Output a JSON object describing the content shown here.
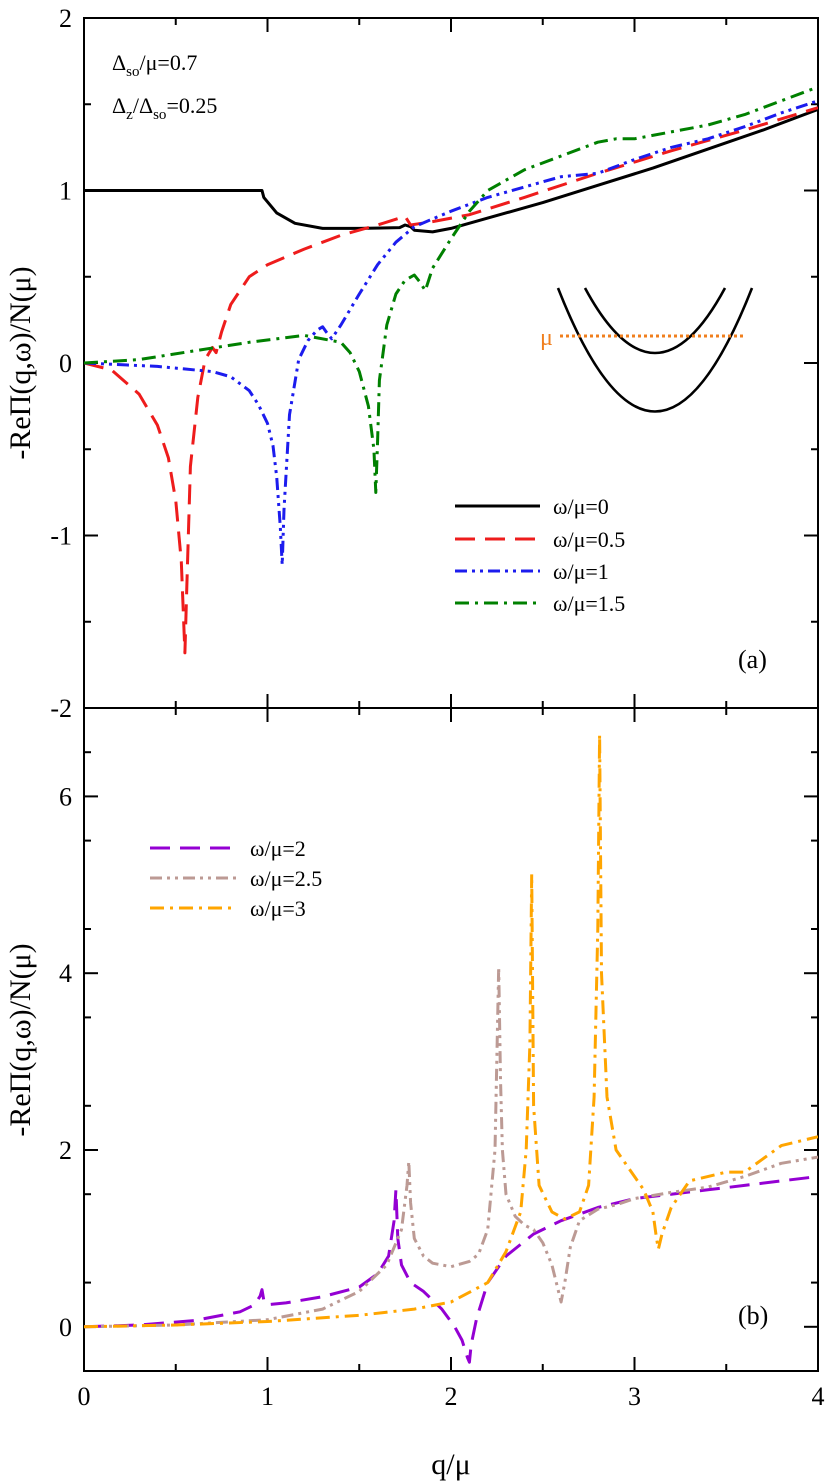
{
  "chart_data": [
    {
      "type": "line",
      "panel_label": "(a)",
      "xlabel": "",
      "ylabel": "-ReΠ(q,ω)/N(μ)",
      "xlim": [
        0,
        4
      ],
      "ylim": [
        -2,
        2
      ],
      "x_ticks": [],
      "y_ticks": [
        -2,
        -1,
        0,
        1,
        2
      ],
      "y_tick_labels": [
        "-2",
        "-1",
        "0",
        "1",
        "2"
      ],
      "annotations": [
        {
          "base": "Δ",
          "sub": "so",
          "rest": "/μ=0.7"
        },
        {
          "base": "Δ",
          "sub": "z",
          "mid": "/Δ",
          "sub2": "so",
          "rest": "=0.25"
        }
      ],
      "inset": {
        "mu_label": "μ",
        "mu_color": "#f07f1e",
        "description_level_rel": 0.55
      },
      "legend_position": "lower-right",
      "series": [
        {
          "name": "ω/μ=0",
          "color": "#000000",
          "dash": "solid",
          "x": [
            0,
            0.97,
            0.98,
            1.05,
            1.15,
            1.3,
            1.5,
            1.72,
            1.75,
            1.78,
            1.8,
            1.9,
            2.0,
            2.2,
            2.5,
            2.8,
            3.1,
            3.4,
            3.7,
            4.0
          ],
          "y": [
            1.0,
            1.0,
            0.96,
            0.87,
            0.81,
            0.78,
            0.78,
            0.785,
            0.8,
            0.79,
            0.77,
            0.76,
            0.78,
            0.84,
            0.93,
            1.03,
            1.13,
            1.24,
            1.35,
            1.47
          ]
        },
        {
          "name": "ω/μ=0.5",
          "color": "#ee1c1c",
          "dash": "long-dash",
          "x": [
            0,
            0.15,
            0.3,
            0.4,
            0.46,
            0.5,
            0.53,
            0.55,
            0.56,
            0.58,
            0.62,
            0.66,
            0.7,
            0.72,
            0.75,
            0.8,
            0.9,
            1.0,
            1.2,
            1.4,
            1.6,
            1.72,
            1.75,
            1.78,
            1.9,
            2.1,
            2.4,
            2.8,
            3.2,
            3.6,
            4.0
          ],
          "y": [
            0,
            -0.04,
            -0.18,
            -0.36,
            -0.55,
            -0.8,
            -1.15,
            -1.68,
            -1.3,
            -0.6,
            -0.2,
            0.02,
            0.09,
            0.06,
            0.18,
            0.34,
            0.5,
            0.57,
            0.66,
            0.74,
            0.8,
            0.84,
            0.85,
            0.8,
            0.82,
            0.86,
            0.96,
            1.1,
            1.23,
            1.35,
            1.48
          ]
        },
        {
          "name": "ω/μ=1",
          "color": "#1c1cee",
          "dash": "dash-dot-dot",
          "x": [
            0,
            0.4,
            0.7,
            0.8,
            0.9,
            0.95,
            1.0,
            1.03,
            1.05,
            1.07,
            1.08,
            1.09,
            1.12,
            1.17,
            1.22,
            1.27,
            1.3,
            1.32,
            1.35,
            1.4,
            1.5,
            1.6,
            1.7,
            1.8,
            2.0,
            2.2,
            2.4,
            2.6,
            2.8,
            3.0,
            3.2,
            3.4,
            3.6,
            3.8,
            4.0
          ],
          "y": [
            0,
            -0.02,
            -0.05,
            -0.08,
            -0.16,
            -0.24,
            -0.35,
            -0.48,
            -0.66,
            -0.95,
            -1.17,
            -0.85,
            -0.3,
            0.02,
            0.13,
            0.19,
            0.21,
            0.18,
            0.14,
            0.22,
            0.4,
            0.57,
            0.7,
            0.79,
            0.88,
            0.96,
            1.02,
            1.08,
            1.1,
            1.18,
            1.25,
            1.3,
            1.37,
            1.45,
            1.52
          ]
        },
        {
          "name": "ω/μ=1.5",
          "color": "#008000",
          "dash": "dash-dot",
          "x": [
            0,
            0.3,
            0.6,
            0.9,
            1.2,
            1.4,
            1.45,
            1.5,
            1.55,
            1.58,
            1.59,
            1.6,
            1.61,
            1.65,
            1.7,
            1.75,
            1.8,
            1.83,
            1.86,
            1.9,
            2.0,
            2.1,
            2.2,
            2.4,
            2.6,
            2.8,
            2.9,
            3.0,
            3.2,
            3.4,
            3.6,
            3.8,
            4.0
          ],
          "y": [
            0,
            0.02,
            0.07,
            0.12,
            0.16,
            0.12,
            0.06,
            -0.05,
            -0.25,
            -0.5,
            -0.75,
            -0.45,
            -0.1,
            0.22,
            0.4,
            0.48,
            0.51,
            0.47,
            0.42,
            0.55,
            0.72,
            0.88,
            1.0,
            1.12,
            1.2,
            1.28,
            1.3,
            1.3,
            1.34,
            1.38,
            1.44,
            1.52,
            1.6
          ]
        }
      ]
    },
    {
      "type": "line",
      "panel_label": "(b)",
      "xlabel": "q/μ",
      "ylabel": "-ReΠ(q,ω)/N(μ)",
      "xlim": [
        0,
        4
      ],
      "ylim": [
        -0.5,
        7
      ],
      "x_ticks": [
        0,
        1,
        2,
        3,
        4
      ],
      "x_tick_labels": [
        "0",
        "1",
        "2",
        "3",
        "4"
      ],
      "y_ticks": [
        0,
        2,
        4,
        6
      ],
      "y_tick_labels": [
        "0",
        "2",
        "4",
        "6"
      ],
      "legend_position": "top-left",
      "series": [
        {
          "name": "ω/μ=2",
          "color": "#9400d3",
          "dash": "long-dash",
          "x": [
            0,
            0.3,
            0.6,
            0.85,
            0.93,
            0.96,
            0.97,
            0.98,
            1.0,
            1.1,
            1.3,
            1.5,
            1.6,
            1.66,
            1.69,
            1.7,
            1.71,
            1.73,
            1.78,
            1.85,
            1.95,
            2.02,
            2.06,
            2.09,
            2.1,
            2.11,
            2.14,
            2.2,
            2.3,
            2.45,
            2.6,
            2.8,
            3.0,
            3.2,
            3.4,
            3.6,
            3.8,
            4.0
          ],
          "y": [
            0,
            0.02,
            0.07,
            0.17,
            0.25,
            0.35,
            0.42,
            0.3,
            0.25,
            0.27,
            0.34,
            0.45,
            0.6,
            0.8,
            1.2,
            1.55,
            1.0,
            0.7,
            0.5,
            0.4,
            0.2,
            0.0,
            -0.15,
            -0.35,
            -0.4,
            -0.2,
            0.1,
            0.5,
            0.8,
            1.05,
            1.2,
            1.35,
            1.45,
            1.5,
            1.55,
            1.6,
            1.65,
            1.7
          ]
        },
        {
          "name": "ω/μ=2.5",
          "color": "#bc9a94",
          "dash": "dash-dot-dot",
          "x": [
            0,
            0.5,
            1.0,
            1.3,
            1.5,
            1.65,
            1.73,
            1.76,
            1.77,
            1.78,
            1.8,
            1.85,
            1.9,
            2.0,
            2.1,
            2.15,
            2.2,
            2.24,
            2.26,
            2.27,
            2.28,
            2.3,
            2.35,
            2.4,
            2.45,
            2.5,
            2.55,
            2.58,
            2.6,
            2.62,
            2.65,
            2.7,
            2.8,
            2.9,
            3.0,
            3.2,
            3.4,
            3.6,
            3.8,
            4.0
          ],
          "y": [
            0,
            0.02,
            0.08,
            0.2,
            0.4,
            0.7,
            1.1,
            1.6,
            1.87,
            1.4,
            1.0,
            0.8,
            0.72,
            0.68,
            0.74,
            0.82,
            1.1,
            2.0,
            4.07,
            2.8,
            2.0,
            1.5,
            1.25,
            1.15,
            1.1,
            0.95,
            0.7,
            0.45,
            0.28,
            0.5,
            0.9,
            1.2,
            1.33,
            1.38,
            1.45,
            1.52,
            1.58,
            1.7,
            1.85,
            1.92
          ]
        },
        {
          "name": "ω/μ=3",
          "color": "#ffa500",
          "dash": "dash-dot",
          "x": [
            0,
            0.5,
            1.0,
            1.5,
            1.8,
            2.0,
            2.2,
            2.3,
            2.38,
            2.41,
            2.43,
            2.44,
            2.45,
            2.48,
            2.55,
            2.62,
            2.7,
            2.75,
            2.78,
            2.8,
            2.81,
            2.82,
            2.85,
            2.9,
            3.0,
            3.05,
            3.1,
            3.12,
            3.13,
            3.15,
            3.2,
            3.3,
            3.5,
            3.6,
            3.8,
            4.0
          ],
          "y": [
            0,
            0.02,
            0.06,
            0.13,
            0.2,
            0.28,
            0.5,
            0.85,
            1.3,
            2.0,
            3.2,
            5.12,
            2.5,
            1.6,
            1.3,
            1.22,
            1.3,
            1.6,
            2.6,
            4.5,
            6.7,
            4.0,
            2.6,
            2.0,
            1.7,
            1.55,
            1.3,
            1.0,
            0.88,
            1.05,
            1.35,
            1.65,
            1.75,
            1.75,
            2.05,
            2.15
          ]
        }
      ]
    }
  ]
}
